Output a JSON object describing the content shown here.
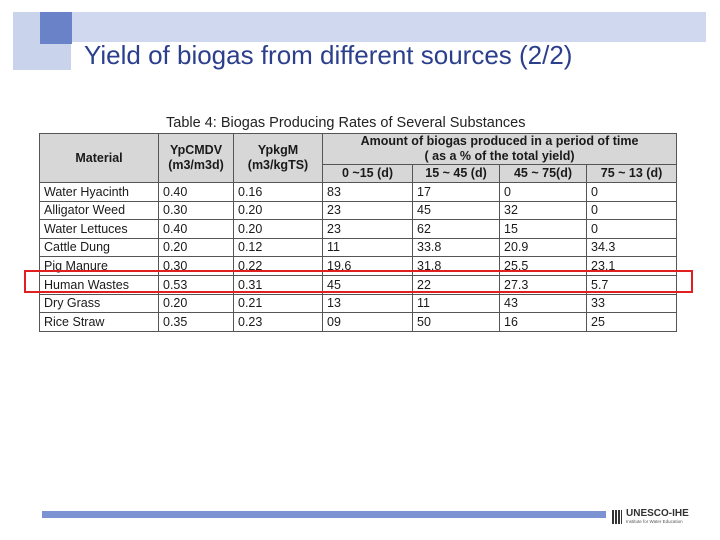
{
  "slide": {
    "title": "Yield of biogas from different sources (2/2)"
  },
  "table": {
    "caption": "Table 4: Biogas Producing Rates of Several Substances",
    "headers": {
      "material": "Material",
      "ypcmdv_line1": "YpCMDV",
      "ypcmdv_line2": "(m3/m3d)",
      "ypkgm_line1": "YpkgM",
      "ypkgm_line2": "(m3/kgTS)",
      "amount_line1": "Amount of biogas produced in a period of time",
      "amount_line2": "( as a % of the total yield)",
      "period1": "0 ~15 (d)",
      "period2": "15 ~ 45 (d)",
      "period3": "45 ~ 75(d)",
      "period4": "75 ~ 13 (d)"
    },
    "rows": [
      [
        "Water Hyacinth",
        "0.40",
        "0.16",
        "83",
        "17",
        "0",
        "0"
      ],
      [
        "Alligator Weed",
        "0.30",
        "0.20",
        "23",
        "45",
        "32",
        "0"
      ],
      [
        "Water Lettuces",
        "0.40",
        "0.20",
        "23",
        "62",
        "15",
        "0"
      ],
      [
        "Cattle Dung",
        "0.20",
        "0.12",
        "11",
        "33.8",
        "20.9",
        "34.3"
      ],
      [
        "Pig Manure",
        "0.30",
        "0.22",
        "19.6",
        "31.8",
        "25.5",
        "23.1"
      ],
      [
        "Human Wastes",
        "0.53",
        "0.31",
        "45",
        "22",
        "27.3",
        "5.7"
      ],
      [
        "Dry Grass",
        "0.20",
        "0.21",
        "13",
        "11",
        "43",
        "33"
      ],
      [
        "Rice Straw",
        "0.35",
        "0.23",
        "09",
        "50",
        "16",
        "25"
      ]
    ],
    "highlighted_row": "Human Wastes"
  },
  "footer": {
    "logo_name": "UNESCO-IHE",
    "logo_tagline": "Institute for Water Education"
  },
  "colors": {
    "title": "#2b3f8c",
    "accent_bar": "#7b93d2",
    "highlight": "#e02020"
  }
}
